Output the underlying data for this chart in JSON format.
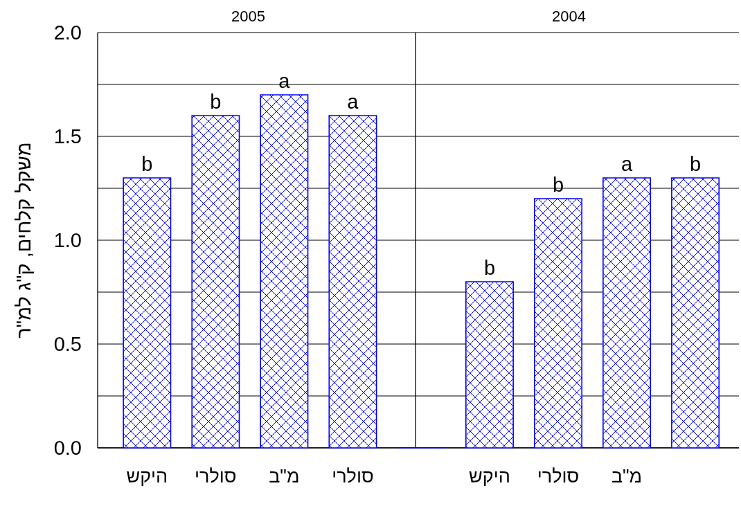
{
  "chart_data": [
    {
      "type": "bar",
      "title": "2005",
      "ylabel": "משקל קלחים, ק\"ג למ\"ר",
      "categories": [
        "היקש",
        "סולרי",
        "מ\"ב",
        "סולרי"
      ],
      "values": [
        1.3,
        1.6,
        1.7,
        1.6
      ],
      "value_labels": [
        "b",
        "b",
        "a",
        "a"
      ],
      "color": "#0000ff",
      "ylim": [
        0,
        2
      ],
      "yticks": [
        {
          "value": 0,
          "label": "0.0"
        },
        {
          "value": 0.25,
          "label": null
        },
        {
          "value": 0.5,
          "label": "0.5"
        },
        {
          "value": 0.75,
          "label": null
        },
        {
          "value": 1,
          "label": "1.0"
        },
        {
          "value": 1.25,
          "label": null
        },
        {
          "value": 1.5,
          "label": "1.5"
        },
        {
          "value": 1.75,
          "label": null
        },
        {
          "value": 2,
          "label": "2.0"
        }
      ],
      "grid": "y"
    },
    {
      "type": "bar",
      "title": "2004",
      "categories": [
        null,
        "היקש",
        "סולרי",
        "מ\"ב",
        null
      ],
      "values": [
        0,
        0.8,
        1.2,
        1.3,
        1.3
      ],
      "value_labels": [
        null,
        "b",
        "b",
        "a",
        "b"
      ],
      "color": "#0000ff",
      "ylim": [
        0,
        2
      ],
      "yticks": [
        0,
        0.25,
        0.5,
        0.75,
        1,
        1.25,
        1.5,
        1.75,
        2
      ],
      "grid": "y",
      "tick_labels": "x"
    }
  ]
}
